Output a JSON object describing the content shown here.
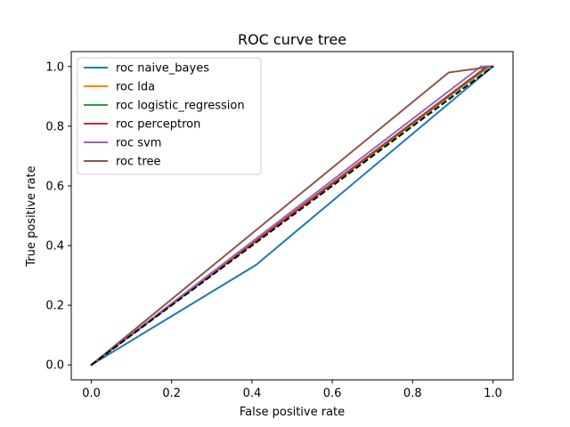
{
  "chart_data": {
    "type": "line",
    "title": "ROC curve tree",
    "xlabel": "False positive rate",
    "ylabel": "True positive rate",
    "xlim": [
      -0.05,
      1.05
    ],
    "ylim": [
      -0.05,
      1.05
    ],
    "xticks": [
      0.0,
      0.2,
      0.4,
      0.6,
      0.8,
      1.0
    ],
    "yticks": [
      0.0,
      0.2,
      0.4,
      0.6,
      0.8,
      1.0
    ],
    "xtick_labels": [
      "0.0",
      "0.2",
      "0.4",
      "0.6",
      "0.8",
      "1.0"
    ],
    "ytick_labels": [
      "0.0",
      "0.2",
      "0.4",
      "0.6",
      "0.8",
      "1.0"
    ],
    "grid": false,
    "legend_position": "upper-left",
    "series": [
      {
        "name": "roc naive_bayes",
        "color": "#1f77b4",
        "x": [
          0.0,
          0.41,
          1.0
        ],
        "y": [
          0.0,
          0.335,
          1.0
        ]
      },
      {
        "name": "roc lda",
        "color": "#ff7f0e",
        "x": [
          0.0,
          0.99,
          1.0
        ],
        "y": [
          0.0,
          1.0,
          1.0
        ]
      },
      {
        "name": "roc logistic_regression",
        "color": "#2ca02c",
        "x": [
          0.0,
          0.99,
          1.0
        ],
        "y": [
          0.0,
          1.0,
          1.0
        ]
      },
      {
        "name": "roc perceptron",
        "color": "#d62728",
        "x": [
          0.0,
          0.985,
          1.0
        ],
        "y": [
          0.0,
          1.0,
          1.0
        ]
      },
      {
        "name": "roc svm",
        "color": "#9467bd",
        "x": [
          0.0,
          0.97,
          1.0
        ],
        "y": [
          0.0,
          1.0,
          1.0
        ]
      },
      {
        "name": "roc tree",
        "color": "#8c564b",
        "x": [
          0.0,
          0.89,
          1.0
        ],
        "y": [
          0.0,
          0.98,
          1.0
        ]
      }
    ],
    "reference_line": {
      "color": "#000000",
      "style": "dashed",
      "x": [
        0.0,
        1.0
      ],
      "y": [
        0.0,
        1.0
      ]
    }
  }
}
